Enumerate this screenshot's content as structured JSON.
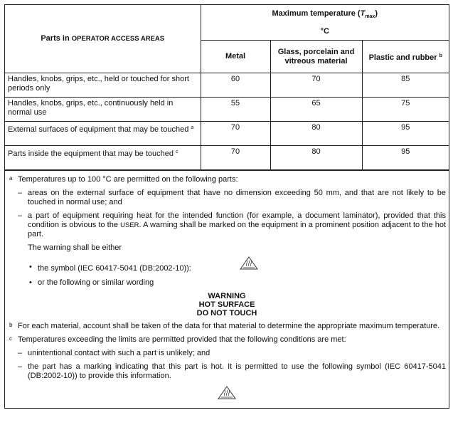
{
  "table": {
    "row_header": {
      "prefix": "Parts in ",
      "smallcaps": "OPERATOR ACCESS AREAS"
    },
    "group_header": {
      "label": "Maximum temperature (",
      "symbol": "T",
      "subscript": "max",
      "close": ")",
      "unit": "°C"
    },
    "columns": [
      {
        "label": "Metal",
        "sup": ""
      },
      {
        "label": "Glass, porcelain and vitreous material",
        "sup": ""
      },
      {
        "label": "Plastic and rubber",
        "sup": "b"
      }
    ],
    "rows": [
      {
        "part": "Handles, knobs, grips, etc., held or touched for short periods only",
        "sup": "",
        "values": [
          "60",
          "70",
          "85"
        ]
      },
      {
        "part": "Handles, knobs, grips, etc., continuously held in normal use",
        "sup": "",
        "values": [
          "55",
          "65",
          "75"
        ]
      },
      {
        "part": "External surfaces of equipment that may be touched",
        "sup": "a",
        "values": [
          "70",
          "80",
          "95"
        ]
      },
      {
        "part": "Parts inside the equipment that may be touched",
        "sup": "c",
        "values": [
          "70",
          "80",
          "95"
        ]
      }
    ]
  },
  "notes": {
    "a": {
      "marker": "a",
      "text": "Temperatures up to 100 °C are permitted on the following parts:",
      "dash1": "areas on the external surface of equipment that have no dimension exceeding 50 mm, and that are not likely to be touched in normal use; and",
      "dash2_pre": "a part of equipment requiring heat for the intended function (for example, a document laminator), provided that this condition is obvious to the ",
      "dash2_sc": "USER",
      "dash2_post": ". A warning shall be marked on the equipment in a prominent position adjacent to the hot part.",
      "warning_intro": "The warning shall be either",
      "bullet1": "the symbol (IEC 60417-5041 (DB:2002-10)):",
      "bullet2": "or the following or similar wording",
      "warning_lines": [
        "WARNING",
        "HOT SURFACE",
        "DO NOT TOUCH"
      ],
      "symbol_icon": "hot-surface-warning-icon"
    },
    "b": {
      "marker": "b",
      "text": "For each material, account shall be taken of the data for that material to determine the appropriate maximum temperature."
    },
    "c": {
      "marker": "c",
      "text": "Temperatures exceeding the limits are permitted provided that the following conditions are met:",
      "dash1": "unintentional contact with such a part is unlikely; and",
      "dash2": "the part has a marking indicating that this part is hot. It is permitted to use the following symbol (IEC 60417-5041 (DB:2002-10)) to provide this information.",
      "symbol_icon": "hot-surface-warning-icon"
    },
    "dash_char": "–",
    "bullet_char": "•"
  }
}
